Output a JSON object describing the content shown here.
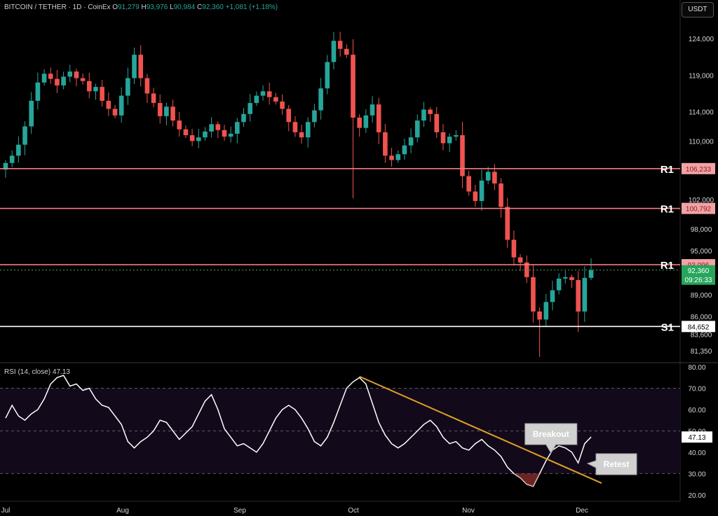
{
  "header": {
    "symbol": "BITCOIN / TETHER · 1D · CoinEx",
    "open_label": "O",
    "open": "91,279",
    "high_label": "H",
    "high": "93,976",
    "low_label": "L",
    "low": "90,984",
    "close_label": "C",
    "close": "92,360",
    "change": "+1,081 (+1.18%)"
  },
  "currency_button": "USDT",
  "rsi_title": "RSI (14, close)",
  "rsi_value": "47.13",
  "colors": {
    "up": "#26a69a",
    "down": "#ef5350",
    "resistance": "#f47a80",
    "support": "#ffffff",
    "trendline": "#e0a028",
    "rsi_line": "#ffffff",
    "rsi_band": "#120a1a"
  },
  "chart_data": [
    {
      "type": "candlestick",
      "title": "BITCOIN / TETHER · 1D · CoinEx",
      "x_ticks": [
        "Jul",
        "Aug",
        "Sep",
        "Oct",
        "Nov",
        "Dec"
      ],
      "y_ticks": [
        124000,
        119000,
        114000,
        110000,
        106000,
        102000,
        98000,
        95000,
        92000,
        89000,
        86000,
        83600,
        81350
      ],
      "y_tick_labels": [
        "124,000",
        "119,000",
        "114,000",
        "110,000",
        "106,000",
        "102,000",
        "98,000",
        "95,000",
        "92,000",
        "89,000",
        "86,000",
        "83,600",
        "81,350"
      ],
      "levels": [
        {
          "name": "R1",
          "value": 106233,
          "label": "106,233",
          "kind": "resistance"
        },
        {
          "name": "R1",
          "value": 100792,
          "label": "100,792",
          "kind": "resistance"
        },
        {
          "name": "R1",
          "value": 93096,
          "label": "93,096",
          "kind": "resistance"
        },
        {
          "name": "S1",
          "value": 84652,
          "label": "84,652",
          "kind": "support"
        }
      ],
      "last_price": {
        "value": 92360,
        "label": "92,360",
        "countdown": "09:26:33"
      },
      "close_path": [
        107000,
        108000,
        109500,
        112000,
        115500,
        118000,
        119200,
        118500,
        117600,
        118800,
        119500,
        118600,
        118200,
        116800,
        117400,
        115500,
        114400,
        113500,
        116200,
        118600,
        121800,
        118600,
        116500,
        115200,
        113400,
        114700,
        112800,
        111600,
        110800,
        110000,
        110500,
        111300,
        112300,
        111500,
        110600,
        111000,
        112600,
        113700,
        115200,
        116200,
        116800,
        116000,
        115400,
        114400,
        112600,
        111200,
        110500,
        112600,
        114200,
        117200,
        120800,
        123700,
        122600,
        121800,
        113200,
        111800,
        113500,
        115000,
        111200,
        108000,
        107400,
        108200,
        109400,
        110500,
        112800,
        114300,
        113700,
        111200,
        109700,
        110600,
        110800,
        105200,
        103100,
        101800,
        104600,
        105800,
        104200,
        101000,
        96500,
        94100,
        93400,
        91400,
        86700,
        85600,
        88000,
        89600,
        91200,
        91400,
        91000,
        86700,
        91300,
        92360
      ],
      "ylim": [
        79800,
        126600
      ]
    },
    {
      "type": "line",
      "title": "RSI (14, close)",
      "last_value": 47.13,
      "y_ticks": [
        80,
        70,
        60,
        50,
        40,
        30,
        20
      ],
      "y_tick_labels": [
        "80.00",
        "70.00",
        "60.00",
        "50.00",
        "40.00",
        "30.00",
        "20.00"
      ],
      "band": [
        30,
        70
      ],
      "ylim": [
        17,
        81
      ],
      "values": [
        56,
        62,
        57,
        55,
        58,
        60,
        65,
        72,
        75,
        76,
        71,
        72,
        69,
        70,
        65,
        62,
        61,
        57,
        53,
        45,
        42,
        45,
        47,
        50,
        55,
        54,
        50,
        46,
        49,
        52,
        58,
        64,
        67,
        60,
        51,
        47,
        43,
        44,
        42,
        40,
        44,
        50,
        56,
        60,
        62,
        60,
        56,
        51,
        45,
        43,
        47,
        54,
        62,
        70,
        73,
        75,
        72,
        63,
        54,
        48,
        44,
        42,
        44,
        47,
        50,
        53,
        55,
        52,
        47,
        44,
        45,
        42,
        41,
        44,
        46,
        43,
        41,
        38,
        33,
        30,
        28,
        25,
        24,
        30,
        36,
        41,
        43,
        42,
        40,
        35,
        44,
        47.13
      ],
      "annotations": [
        {
          "text": "Breakout",
          "series_index": 84
        },
        {
          "text": "Retest",
          "series_index": 89
        }
      ]
    }
  ]
}
